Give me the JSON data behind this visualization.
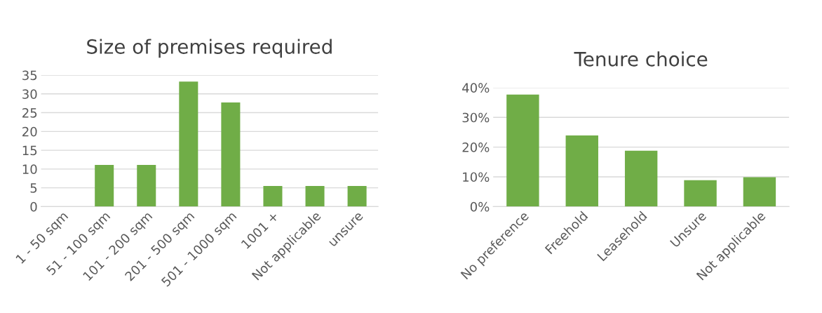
{
  "chart_data": [
    {
      "type": "bar",
      "title": "Size of premises required",
      "categories": [
        "1 - 50 sqm",
        "51 - 100 sqm",
        "101 - 200 sqm",
        "201 - 500 sqm",
        "501 - 1000 sqm",
        "1001 +",
        "Not applicable",
        "unsure"
      ],
      "values": [
        0,
        11.1,
        11.1,
        33.3,
        27.7,
        5.5,
        5.5,
        5.5
      ],
      "color": "#70ad47",
      "ylim": [
        0,
        35
      ],
      "yticks": [
        0,
        5,
        10,
        15,
        20,
        25,
        30,
        35
      ],
      "grid": "y"
    },
    {
      "type": "bar",
      "title": "Tenure choice",
      "categories": [
        "No preference",
        "Freehold",
        "Leasehold",
        "Unsure",
        "Not applicable"
      ],
      "values": [
        37.7,
        23.9,
        18.8,
        8.9,
        9.9
      ],
      "color": "#70ad47",
      "ylim": [
        0,
        40
      ],
      "yticks": [
        {
          "value": 0,
          "label": "0%"
        },
        {
          "value": 10,
          "label": "10%"
        },
        {
          "value": 20,
          "label": "20%"
        },
        {
          "value": 30,
          "label": "30%"
        },
        {
          "value": 40,
          "label": "40%"
        }
      ],
      "grid": "y"
    }
  ]
}
